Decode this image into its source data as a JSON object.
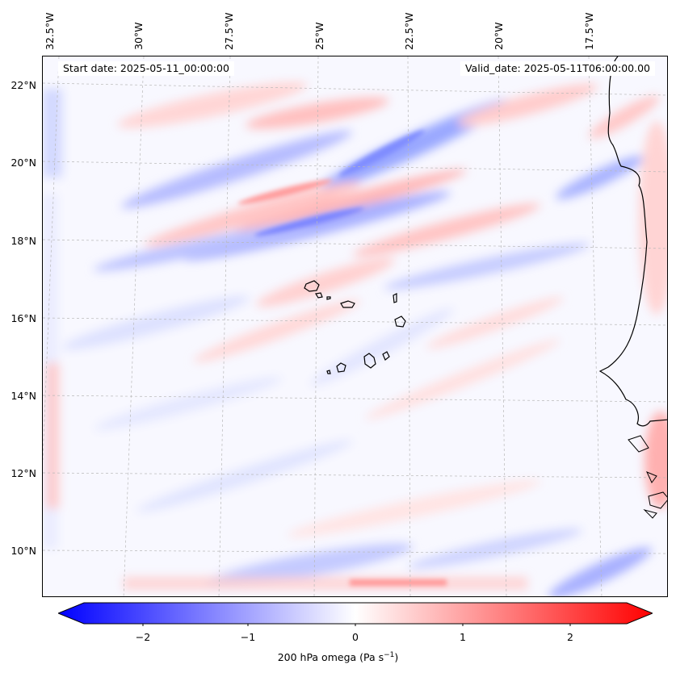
{
  "map": {
    "start_date": "Start date: 2025-05-11_00:00:00",
    "valid_date": "Valid_date: 2025-05-11T06:00:00.00",
    "lon_labels": [
      "32.5°W",
      "30°W",
      "27.5°W",
      "25°W",
      "22.5°W",
      "20°W",
      "17.5°W"
    ],
    "lat_labels": [
      "22°N",
      "20°N",
      "18°N",
      "16°N",
      "14°N",
      "12°N",
      "10°N"
    ],
    "gridlines": true
  },
  "colorbar": {
    "label_text": "200 hPa omega (Pa s",
    "label_exp": "−1",
    "label_close": ")",
    "ticks": [
      "−2",
      "−1",
      "0",
      "1",
      "2"
    ],
    "range": [
      -2.7,
      2.7
    ],
    "colormap": {
      "low": "#0000ff",
      "mid": "#ffffff",
      "high": "#ff0000"
    }
  }
}
